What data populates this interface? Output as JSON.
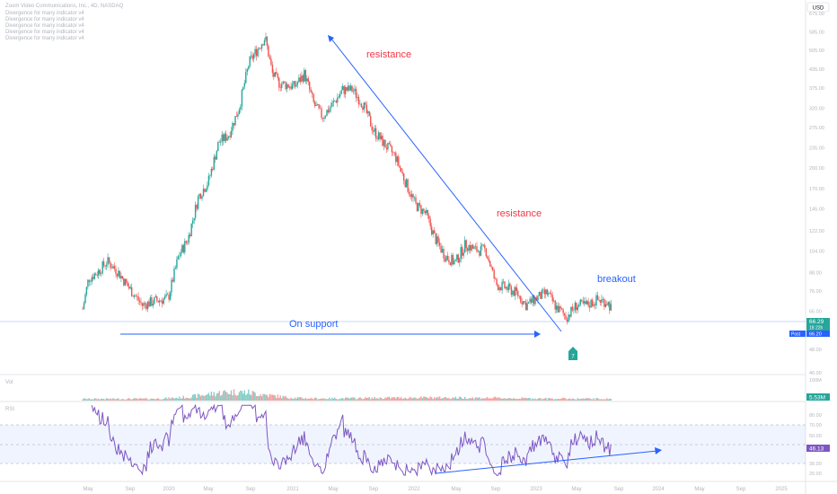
{
  "header": {
    "symbol": "Zoom Video Communications, Inc., 4D, NASDAQ",
    "indicators": [
      "Divergence for many indicator v4",
      "Divergence for many indicator v4",
      "Divergence for many indicator v4",
      "Divergence for many indicator v4",
      "Divergence for many indicator v4"
    ]
  },
  "currency": "USD",
  "colors": {
    "up": "#26a69a",
    "down": "#ef5350",
    "trend": "#2962ff",
    "rsi": "#7e57c2",
    "annotation_red": "#f23645",
    "annotation_blue": "#2962ff"
  },
  "annotations": {
    "resistance_1": "resistance",
    "resistance_2": "resistance",
    "breakout": "breakout",
    "support": "On support",
    "signal_badge": "7"
  },
  "price_labels": {
    "last": "66.29",
    "last_sub": "18 22h",
    "post_tag": "Post",
    "post_value": "66.20"
  },
  "volume": {
    "label": "Vol",
    "top_tick": "100M",
    "last_value": "5.53M"
  },
  "rsi": {
    "label": "RSI",
    "last_value": "46.13",
    "ticks": [
      "80.00",
      "70.00",
      "50.00",
      "30.00",
      "20.00"
    ]
  },
  "chart_data": {
    "type": "candlestick",
    "scale": "log",
    "y_ticks": [
      "675.00",
      "585.00",
      "505.00",
      "435.00",
      "375.00",
      "320.00",
      "275.00",
      "235.00",
      "200.00",
      "170.00",
      "145.00",
      "122.00",
      "104.00",
      "88.00",
      "76.00",
      "65.00",
      "56.00",
      "48.00",
      "40.00"
    ],
    "x_ticks": [
      "May",
      "Sep",
      "2020",
      "May",
      "Sep",
      "2021",
      "May",
      "Sep",
      "2022",
      "May",
      "Sep",
      "2023",
      "May",
      "Sep",
      "2024",
      "May",
      "Sep",
      "2025"
    ],
    "ylim": [
      40,
      680
    ],
    "close_path": [
      [
        "2019-04-18",
        66
      ],
      [
        "2019-05-06",
        84
      ],
      [
        "2019-06-01",
        88
      ],
      [
        "2019-07-01",
        96
      ],
      [
        "2019-08-01",
        89
      ],
      [
        "2019-09-01",
        79
      ],
      [
        "2019-10-15",
        68
      ],
      [
        "2019-11-15",
        70
      ],
      [
        "2020-01-01",
        72
      ],
      [
        "2020-02-01",
        100
      ],
      [
        "2020-03-01",
        115
      ],
      [
        "2020-04-01",
        160
      ],
      [
        "2020-05-01",
        180
      ],
      [
        "2020-06-01",
        245
      ],
      [
        "2020-07-01",
        260
      ],
      [
        "2020-08-01",
        320
      ],
      [
        "2020-09-01",
        460
      ],
      [
        "2020-10-19",
        560
      ],
      [
        "2020-11-10",
        420
      ],
      [
        "2020-12-01",
        390
      ],
      [
        "2021-01-15",
        380
      ],
      [
        "2021-02-15",
        420
      ],
      [
        "2021-03-15",
        330
      ],
      [
        "2021-04-10",
        300
      ],
      [
        "2021-05-10",
        330
      ],
      [
        "2021-06-10",
        370
      ],
      [
        "2021-07-10",
        370
      ],
      [
        "2021-08-10",
        330
      ],
      [
        "2021-09-10",
        270
      ],
      [
        "2021-10-15",
        240
      ],
      [
        "2021-11-15",
        220
      ],
      [
        "2021-12-15",
        180
      ],
      [
        "2022-01-15",
        150
      ],
      [
        "2022-02-15",
        140
      ],
      [
        "2022-03-15",
        115
      ],
      [
        "2022-04-15",
        100
      ],
      [
        "2022-05-15",
        95
      ],
      [
        "2022-06-15",
        110
      ],
      [
        "2022-07-15",
        105
      ],
      [
        "2022-08-15",
        105
      ],
      [
        "2022-09-15",
        80
      ],
      [
        "2022-10-15",
        78
      ],
      [
        "2022-11-15",
        75
      ],
      [
        "2022-12-15",
        68
      ],
      [
        "2023-01-15",
        72
      ],
      [
        "2023-02-15",
        75
      ],
      [
        "2023-03-15",
        67
      ],
      [
        "2023-04-15",
        62
      ],
      [
        "2023-05-15",
        68
      ],
      [
        "2023-06-15",
        68
      ],
      [
        "2023-07-15",
        71
      ],
      [
        "2023-08-15",
        70
      ],
      [
        "2023-08-29",
        66.29
      ]
    ]
  }
}
